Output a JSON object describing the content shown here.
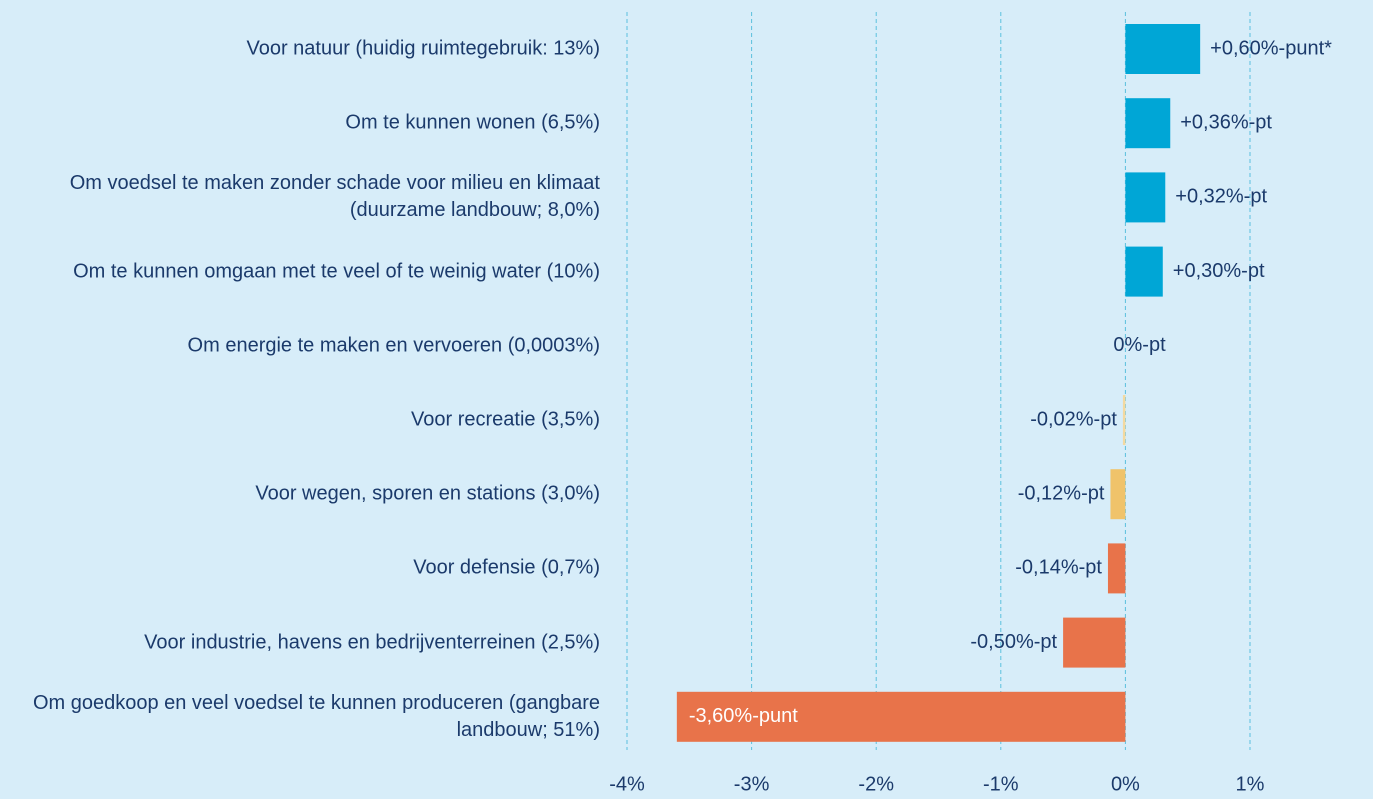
{
  "chart_data": {
    "type": "bar",
    "orientation": "horizontal",
    "categories": [
      "Voor natuur (huidig ruimtegebruik: 13%)",
      "Om te kunnen wonen (6,5%)",
      "Om voedsel te maken zonder schade voor milieu en klimaat (duurzame landbouw; 8,0%)",
      "Om te kunnen omgaan met te veel of te weinig water (10%)",
      "Om energie te maken en vervoeren (0,0003%)",
      "Voor recreatie (3,5%)",
      "Voor wegen, sporen en stations (3,0%)",
      "Voor defensie (0,7%)",
      "Voor industrie, havens en bedrijventerreinen (2,5%)",
      "Om goedkoop en veel voedsel te kunnen produceren (gangbare landbouw; 51%)"
    ],
    "values": [
      0.6,
      0.36,
      0.32,
      0.3,
      0,
      -0.02,
      -0.12,
      -0.14,
      -0.5,
      -3.6
    ],
    "value_labels": [
      "+0,60%-punt*",
      "+0,36%-pt",
      "+0,32%-pt",
      "+0,30%-pt",
      "0%-pt",
      "-0,02%-pt",
      "-0,12%-pt",
      "-0,14%-pt",
      "-0,50%-pt",
      "-3,60%-punt"
    ],
    "colors": [
      "#00a6d6",
      "#00a6d6",
      "#00a6d6",
      "#00a6d6",
      "#00a6d6",
      "#f3d9a0",
      "#f0c36a",
      "#e8734a",
      "#e8734a",
      "#e8734a"
    ],
    "xlim": [
      -4,
      1
    ],
    "xticks": [
      {
        "value": -4,
        "label": "-4%"
      },
      {
        "value": -3,
        "label": "-3%"
      },
      {
        "value": -2,
        "label": "-2%"
      },
      {
        "value": -1,
        "label": "-1%"
      },
      {
        "value": 0,
        "label": "0%"
      },
      {
        "value": 1,
        "label": "1%"
      }
    ],
    "grid": true
  }
}
